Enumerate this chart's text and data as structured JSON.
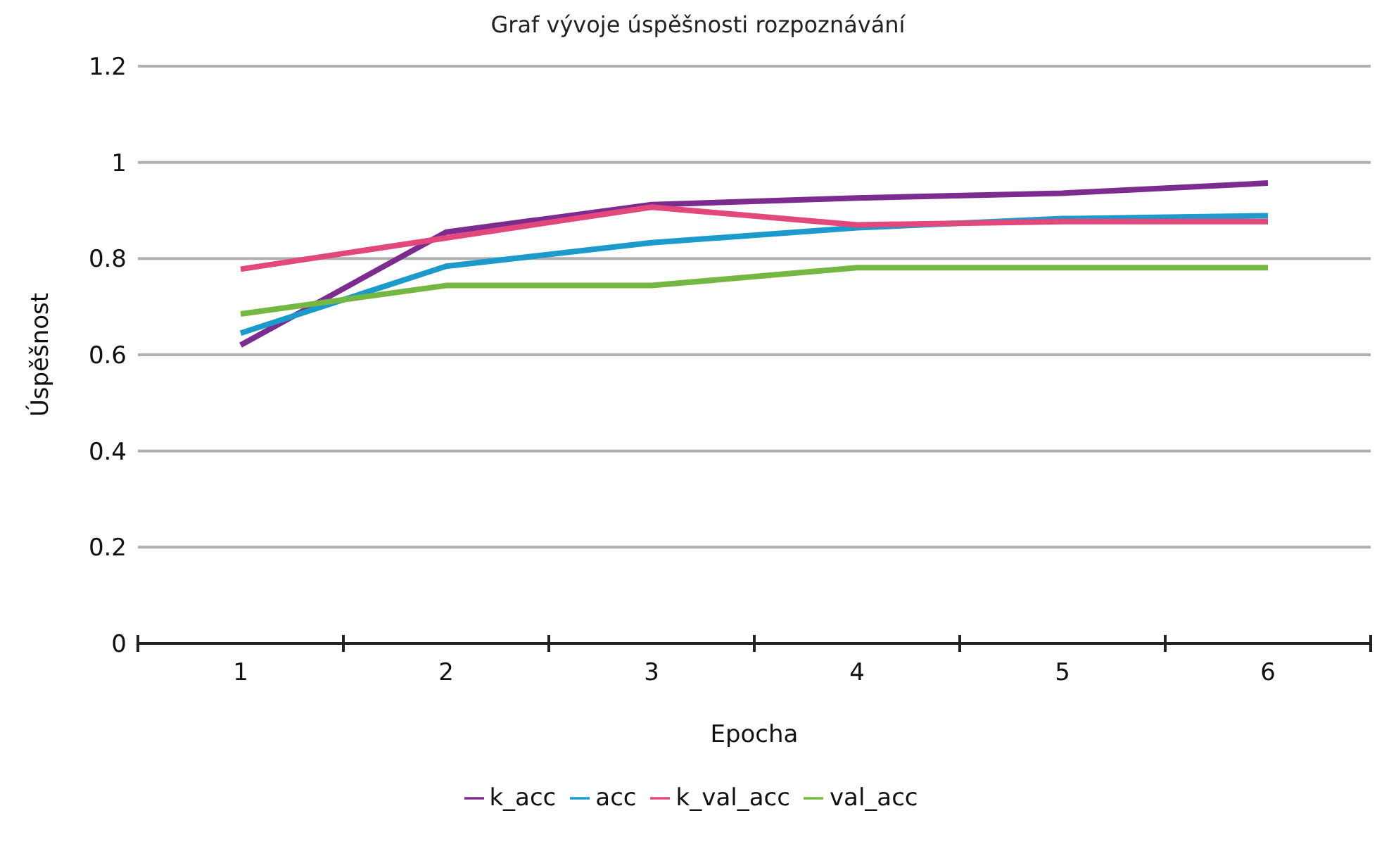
{
  "chart_data": {
    "type": "line",
    "title": "Graf vývoje úspěšnosti rozpoznávání",
    "xlabel": "Epocha",
    "ylabel": "Úspěšnost",
    "categories": [
      "1",
      "2",
      "3",
      "4",
      "5",
      "6"
    ],
    "series": [
      {
        "name": "k_acc",
        "color": "#7b2c8e",
        "values": [
          0.62,
          0.855,
          0.912,
          0.926,
          0.936,
          0.957
        ]
      },
      {
        "name": "acc",
        "color": "#1b9acb",
        "values": [
          0.645,
          0.784,
          0.833,
          0.864,
          0.883,
          0.889
        ]
      },
      {
        "name": "k_val_acc",
        "color": "#e3487d",
        "values": [
          0.778,
          0.843,
          0.907,
          0.87,
          0.877,
          0.877
        ]
      },
      {
        "name": "val_acc",
        "color": "#74b843",
        "values": [
          0.685,
          0.744,
          0.744,
          0.781,
          0.781,
          0.781
        ]
      }
    ],
    "ylim": [
      0,
      1.2
    ],
    "yticks": [
      0,
      0.2,
      0.4,
      0.6,
      0.8,
      1,
      1.2
    ],
    "grid": "y",
    "legend": "bottom",
    "marker": "none",
    "line_style": "solid"
  }
}
